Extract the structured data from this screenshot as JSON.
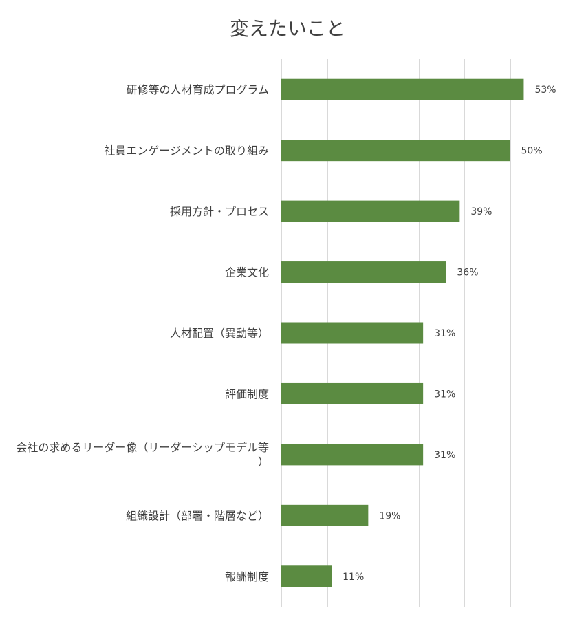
{
  "chart_data": {
    "type": "bar",
    "orientation": "horizontal",
    "title": "変えたいこと",
    "categories": [
      "研修等の人材育成プログラム",
      "社員エンゲージメントの取り組み",
      "採用方針・プロセス",
      "企業文化",
      "人材配置（異動等）",
      "評価制度",
      "会社の求めるリーダー像（リーダーシップモデル等）",
      "組織設計（部署・階層など）",
      "報酬制度"
    ],
    "values": [
      53,
      50,
      39,
      36,
      31,
      31,
      31,
      19,
      11
    ],
    "value_labels": [
      "53%",
      "50%",
      "39%",
      "36%",
      "31%",
      "31%",
      "31%",
      "19%",
      "11%"
    ],
    "xlim": [
      0,
      60
    ],
    "grid": true,
    "legend": "none",
    "colors": {
      "bar": "#5b8b41",
      "grid": "#d9d9d9",
      "text": "#404040"
    }
  }
}
